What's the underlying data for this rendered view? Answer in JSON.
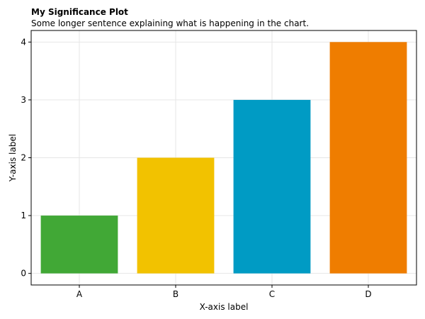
{
  "chart_data": {
    "type": "bar",
    "title": "My Significance Plot",
    "subtitle": "Some longer sentence explaining what is happening in the chart.",
    "xlabel": "X-axis label",
    "ylabel": "Y-axis label",
    "categories": [
      "A",
      "B",
      "C",
      "D"
    ],
    "values": [
      1,
      2,
      3,
      4
    ],
    "colors": [
      "#41a836",
      "#f2c200",
      "#009bc4",
      "#ef7d00"
    ],
    "ylim": [
      -0.2,
      4.2
    ],
    "yticks": [
      0,
      1,
      2,
      3,
      4
    ],
    "grid": true,
    "legend": "none"
  }
}
